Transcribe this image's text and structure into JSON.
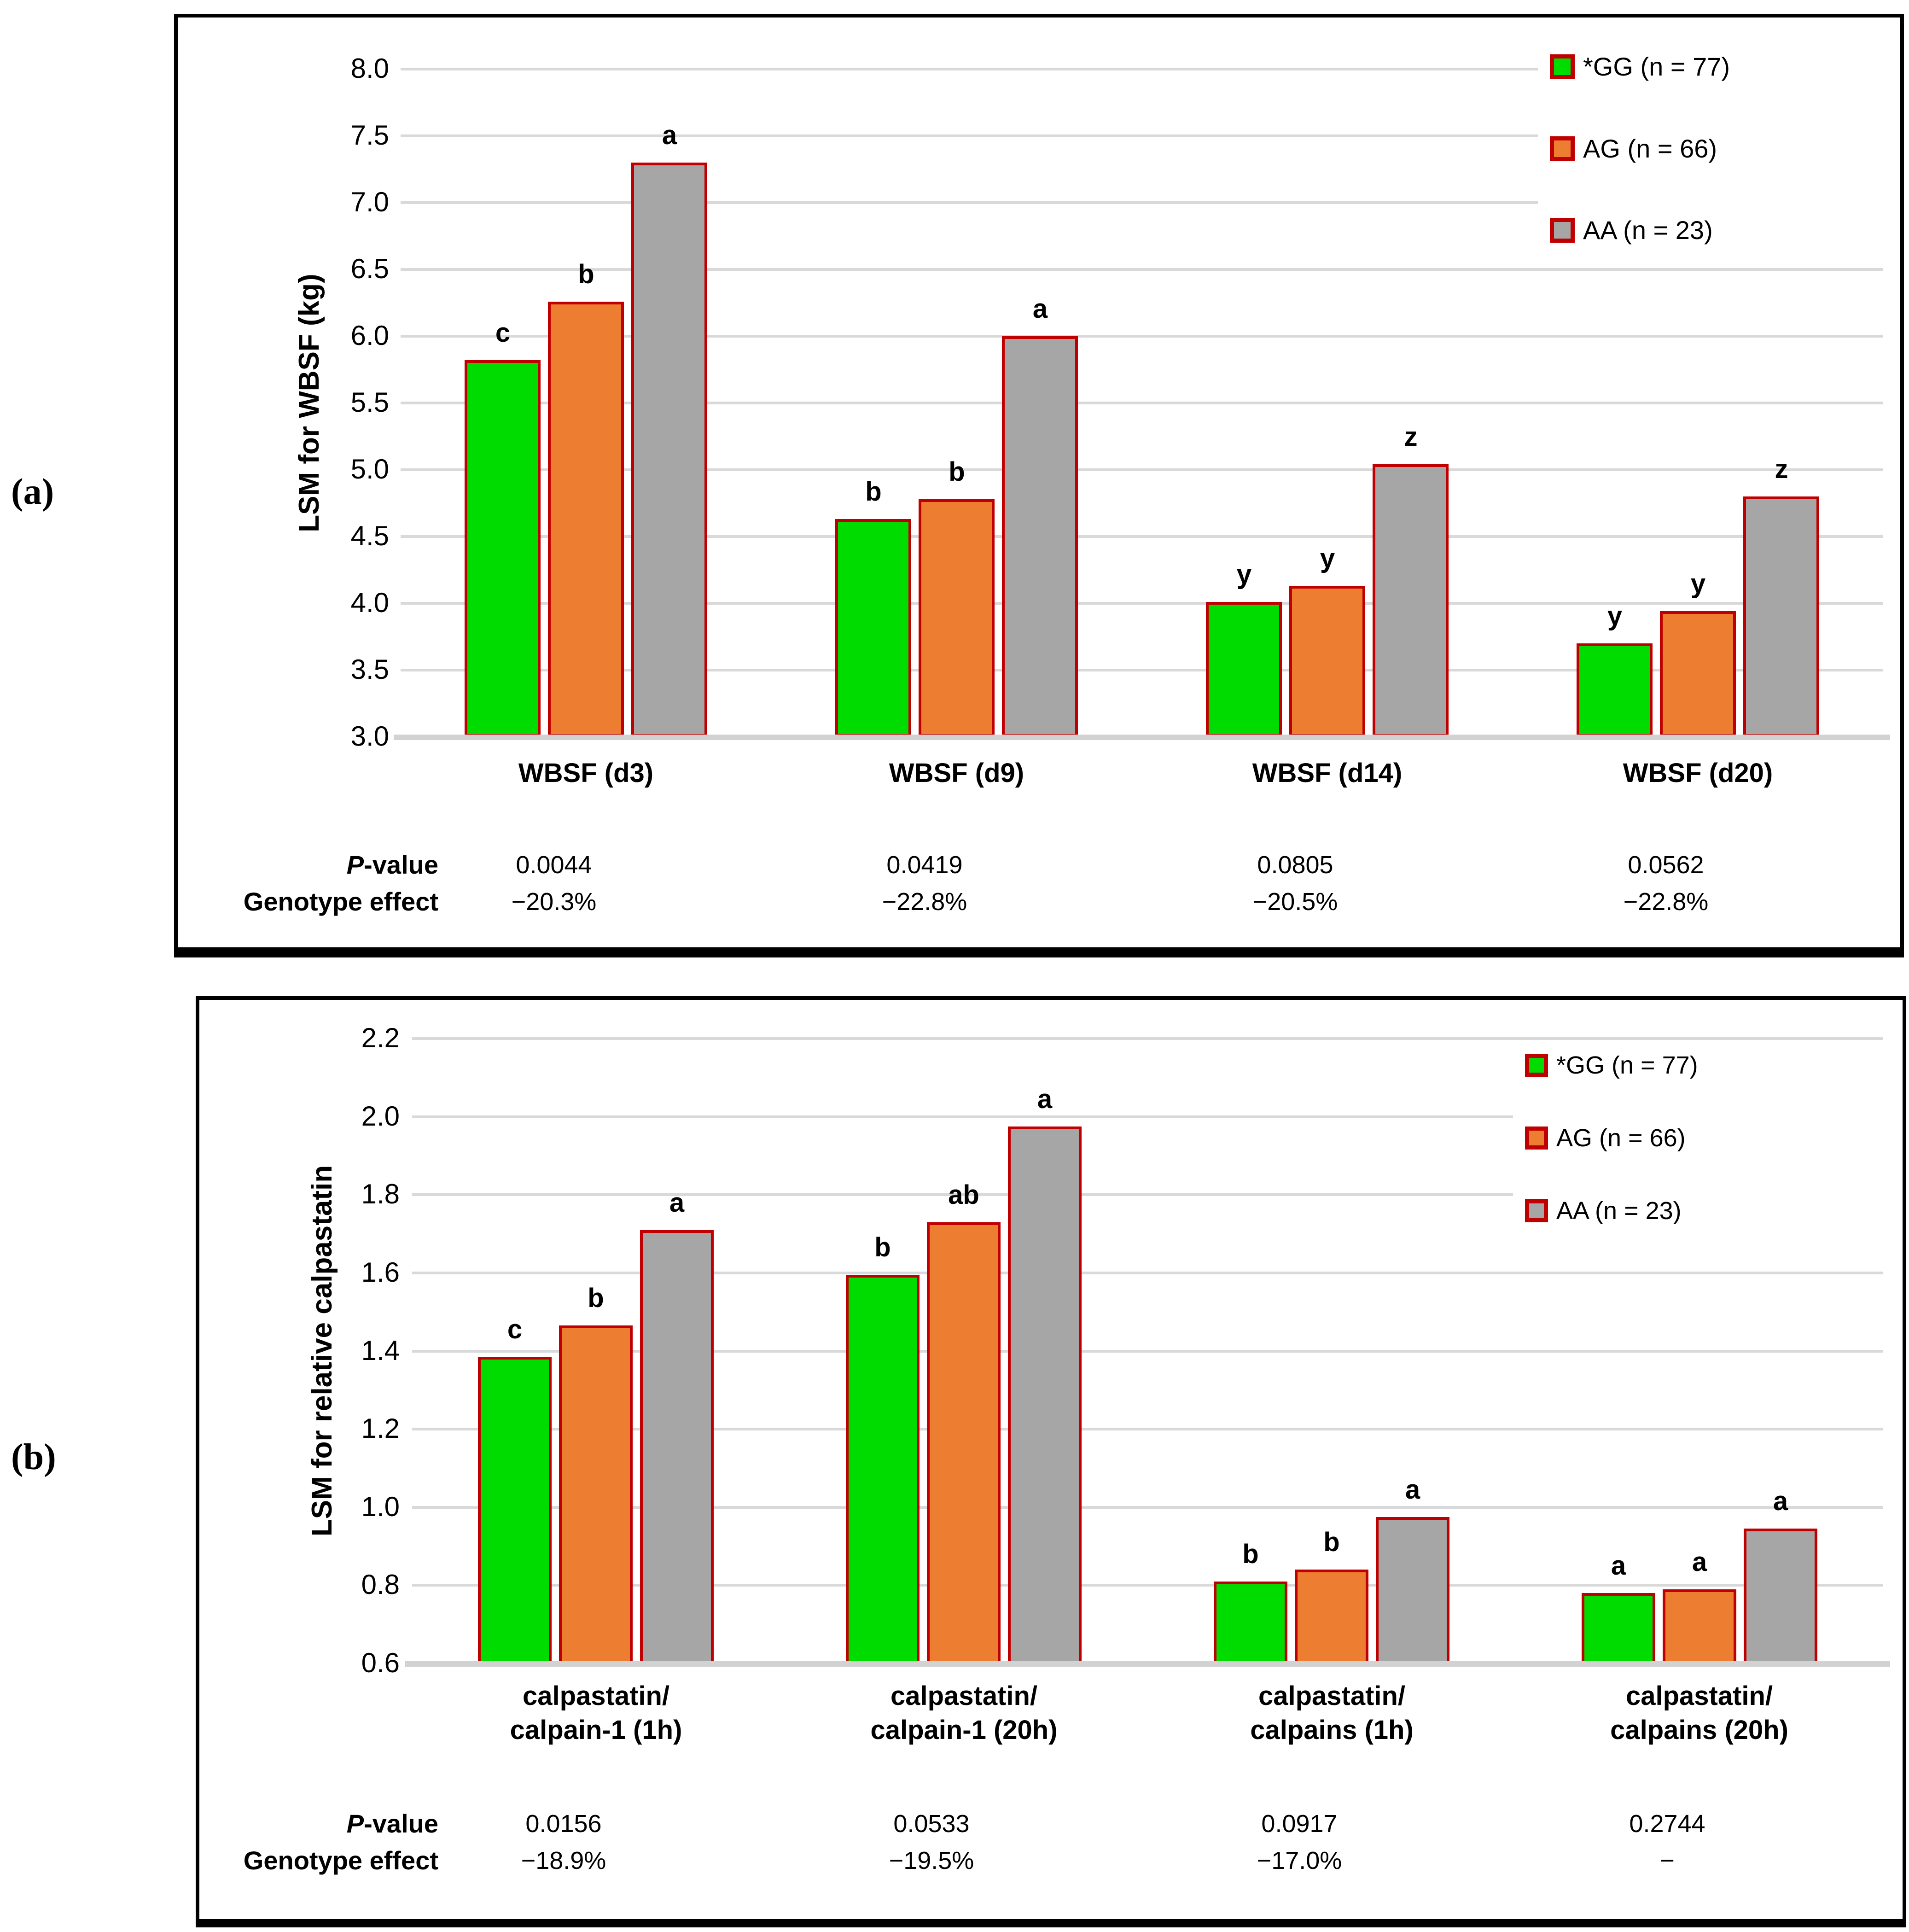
{
  "panels": [
    {
      "label": "(a)"
    },
    {
      "label": "(b)"
    }
  ],
  "style": {
    "bar_border_color": "#C00000",
    "gridline_color": "#D9D9D9",
    "axis_line_color": "#D2D2D2",
    "legend_fill": "#ffffff",
    "text_color": "#000000"
  },
  "chart_data": [
    {
      "type": "bar",
      "panel": "(a)",
      "ylabel": "LSM for WBSF (kg)",
      "ylim": [
        3.0,
        8.0
      ],
      "ystep": 0.5,
      "grid": true,
      "legend_position": "top-right",
      "categories": [
        "WBSF (d3)",
        "WBSF (d9)",
        "WBSF (d14)",
        "WBSF (d20)"
      ],
      "series": [
        {
          "name": "*GG (n = 77)",
          "color": "#00DC00",
          "values": [
            5.82,
            4.63,
            4.01,
            3.7
          ]
        },
        {
          "name": "AG (n = 66)",
          "color": "#ED7D31",
          "values": [
            6.26,
            4.78,
            4.13,
            3.94
          ]
        },
        {
          "name": "AA (n = 23)",
          "color": "#A6A6A6",
          "values": [
            7.3,
            6.0,
            5.04,
            4.8
          ]
        }
      ],
      "significance_letters": [
        [
          "c",
          "b",
          "a"
        ],
        [
          "b",
          "b",
          "a"
        ],
        [
          "y",
          "y",
          "z"
        ],
        [
          "y",
          "y",
          "z"
        ]
      ],
      "stats_rows": {
        "p_label_italic": "P",
        "p_label_rest": "-value",
        "p_values": [
          "0.0044",
          "0.0419",
          "0.0805",
          "0.0562"
        ],
        "effect_label": "Genotype effect",
        "effect_values": [
          "−20.3%",
          "−22.8%",
          "−20.5%",
          "−22.8%"
        ]
      }
    },
    {
      "type": "bar",
      "panel": "(b)",
      "ylabel": "LSM for relative calpastatin",
      "ylim": [
        0.6,
        2.2
      ],
      "ystep": 0.2,
      "grid": true,
      "legend_position": "top-right",
      "categories": [
        "calpastatin/\ncalpain-1 (1h)",
        "calpastatin/\ncalpain-1 (20h)",
        "calpastatin/\ncalpains (1h)",
        "calpastatin/\ncalpains (20h)"
      ],
      "series": [
        {
          "name": "*GG (n = 77)",
          "color": "#00DC00",
          "values": [
            1.385,
            1.595,
            0.81,
            0.78
          ]
        },
        {
          "name": "AG (n = 66)",
          "color": "#ED7D31",
          "values": [
            1.465,
            1.73,
            0.84,
            0.79
          ]
        },
        {
          "name": "AA (n = 23)",
          "color": "#A6A6A6",
          "values": [
            1.71,
            1.975,
            0.975,
            0.945
          ]
        }
      ],
      "significance_letters": [
        [
          "c",
          "b",
          "a"
        ],
        [
          "b",
          "ab",
          "a"
        ],
        [
          "b",
          "b",
          "a"
        ],
        [
          "a",
          "a",
          "a"
        ]
      ],
      "stats_rows": {
        "p_label_italic": "P",
        "p_label_rest": "-value",
        "p_values": [
          "0.0156",
          "0.0533",
          "0.0917",
          "0.2744"
        ],
        "effect_label": "Genotype effect",
        "effect_values": [
          "−18.9%",
          "−19.5%",
          "−17.0%",
          "−"
        ]
      }
    }
  ]
}
